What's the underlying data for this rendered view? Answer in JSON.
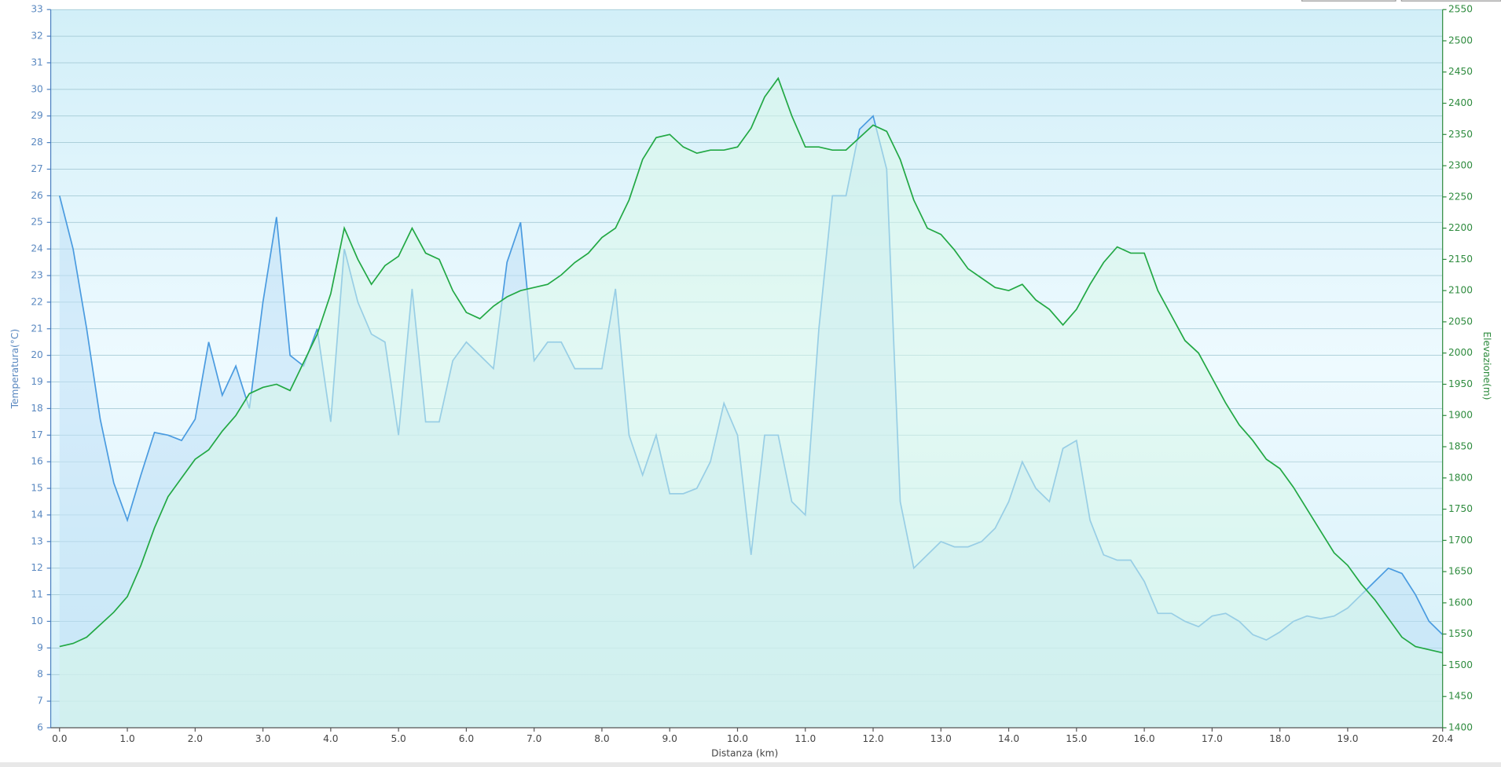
{
  "chart_data": {
    "type": "area",
    "xlabel": "Distanza  (km)",
    "ylabel": "Temperatura(°C)",
    "y2label": "Elevazione(m)",
    "xlim": [
      -0.13,
      20.4
    ],
    "ylim": [
      6,
      33
    ],
    "y2lim": [
      1400,
      2550
    ],
    "grid": true,
    "xticks": [
      {
        "value": 0,
        "label": "0.0"
      },
      {
        "value": 1,
        "label": "1.0"
      },
      {
        "value": 2,
        "label": "2.0"
      },
      {
        "value": 3,
        "label": "3.0"
      },
      {
        "value": 4,
        "label": "4.0"
      },
      {
        "value": 5,
        "label": "5.0"
      },
      {
        "value": 6,
        "label": "6.0"
      },
      {
        "value": 7,
        "label": "7.0"
      },
      {
        "value": 8,
        "label": "8.0"
      },
      {
        "value": 9,
        "label": "9.0"
      },
      {
        "value": 10,
        "label": "10.0"
      },
      {
        "value": 11,
        "label": "11.0"
      },
      {
        "value": 12,
        "label": "12.0"
      },
      {
        "value": 13,
        "label": "13.0"
      },
      {
        "value": 14,
        "label": "14.0"
      },
      {
        "value": 15,
        "label": "15.0"
      },
      {
        "value": 16,
        "label": "16.0"
      },
      {
        "value": 17,
        "label": "17.0"
      },
      {
        "value": 18,
        "label": "18.0"
      },
      {
        "value": 19,
        "label": "19.0"
      },
      20.4
    ],
    "yticks": [
      6,
      7,
      8,
      9,
      10,
      11,
      12,
      13,
      14,
      15,
      16,
      17,
      18,
      19,
      20,
      21,
      22,
      23,
      24,
      25,
      26,
      27,
      28,
      29,
      30,
      31,
      32,
      33
    ],
    "y2ticks": [
      1400,
      1450,
      1500,
      1550,
      1600,
      1650,
      1700,
      1750,
      1800,
      1850,
      1900,
      1950,
      2000,
      2050,
      2100,
      2150,
      2200,
      2250,
      2300,
      2350,
      2400,
      2450,
      2500,
      2550
    ],
    "x": [
      0,
      0.2,
      0.4,
      0.6,
      0.8,
      1,
      1.2,
      1.4,
      1.6,
      1.8,
      2,
      2.2,
      2.4,
      2.6,
      2.8,
      3,
      3.2,
      3.4,
      3.6,
      3.8,
      4,
      4.2,
      4.4,
      4.6,
      4.8,
      5,
      5.2,
      5.4,
      5.6,
      5.8,
      6,
      6.2,
      6.4,
      6.6,
      6.8,
      7,
      7.2,
      7.4,
      7.6,
      7.8,
      8,
      8.2,
      8.4,
      8.6,
      8.8,
      9,
      9.2,
      9.4,
      9.6,
      9.8,
      10,
      10.2,
      10.4,
      10.6,
      10.8,
      11,
      11.2,
      11.4,
      11.6,
      11.8,
      12,
      12.2,
      12.4,
      12.6,
      12.8,
      13,
      13.2,
      13.4,
      13.6,
      13.8,
      14,
      14.2,
      14.4,
      14.6,
      14.8,
      15,
      15.2,
      15.4,
      15.6,
      15.8,
      16,
      16.2,
      16.4,
      16.6,
      16.8,
      17,
      17.2,
      17.4,
      17.6,
      17.8,
      18,
      18.2,
      18.4,
      18.6,
      18.8,
      19,
      19.2,
      19.4,
      19.6,
      19.8,
      20,
      20.2,
      20.4
    ],
    "series": [
      {
        "color": "#4a9be0",
        "fill": "#bfe0f5",
        "axis": "y",
        "values": [
          26,
          24,
          21,
          17.6,
          15.2,
          13.8,
          15.5,
          17.1,
          17,
          16.8,
          17.6,
          20.5,
          18.5,
          19.6,
          18,
          22,
          25.2,
          20,
          19.6,
          21,
          17.5,
          24,
          22,
          20.8,
          20.5,
          17,
          22.5,
          17.5,
          17.5,
          19.8,
          20.5,
          20,
          19.5,
          23.5,
          25,
          19.8,
          20.5,
          20.5,
          19.5,
          19.5,
          19.5,
          22.5,
          17,
          15.5,
          17,
          14.8,
          14.8,
          15,
          16,
          18.2,
          17,
          12.5,
          17,
          17,
          14.5,
          14,
          21,
          26,
          26,
          28.5,
          29,
          27,
          14.5,
          12,
          12.5,
          13,
          12.8,
          12.8,
          13,
          13.5,
          14.5,
          16,
          15,
          14.5,
          16.5,
          16.8,
          13.8,
          12.5,
          12.3,
          12.3,
          11.5,
          10.3,
          10.3,
          10,
          9.8,
          10.2,
          10.3,
          10,
          9.5,
          9.3,
          9.6,
          10,
          10.2,
          10.1,
          10.2,
          10.5,
          11,
          11.5,
          12,
          11.8,
          11,
          10,
          9.5
        ]
      },
      {
        "color": "#22a844",
        "fill": "#d9f7ea",
        "axis": "y2",
        "values": [
          1530,
          1535,
          1545,
          1565,
          1585,
          1610,
          1660,
          1720,
          1770,
          1800,
          1830,
          1845,
          1875,
          1900,
          1935,
          1945,
          1950,
          1940,
          1985,
          2030,
          2095,
          2200,
          2150,
          2110,
          2140,
          2155,
          2200,
          2160,
          2150,
          2100,
          2065,
          2055,
          2075,
          2090,
          2100,
          2105,
          2110,
          2125,
          2145,
          2160,
          2185,
          2200,
          2245,
          2310,
          2345,
          2350,
          2330,
          2320,
          2325,
          2325,
          2330,
          2360,
          2410,
          2440,
          2380,
          2330,
          2330,
          2325,
          2325,
          2345,
          2365,
          2355,
          2310,
          2245,
          2200,
          2190,
          2165,
          2135,
          2120,
          2105,
          2100,
          2110,
          2085,
          2070,
          2045,
          2070,
          2110,
          2145,
          2170,
          2160,
          2160,
          2100,
          2060,
          2020,
          2000,
          1960,
          1920,
          1885,
          1860,
          1830,
          1815,
          1785,
          1750,
          1715,
          1680,
          1660,
          1630,
          1605,
          1575,
          1545,
          1530,
          1525,
          1520
        ]
      }
    ]
  }
}
